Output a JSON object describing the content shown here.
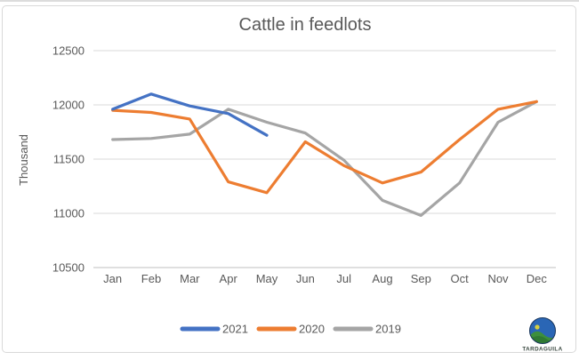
{
  "theme": {
    "series_blue": "#4472C4",
    "series_orange": "#ED7D31",
    "series_gray": "#A5A5A5",
    "gridline": "#D9D9D9",
    "axis_line": "#BFBFBF",
    "text": "#595959",
    "frame_border": "#D9D9D9"
  },
  "chart_data": {
    "type": "line",
    "title": "Cattle in feedlots",
    "xlabel": "",
    "ylabel": "Thousand",
    "categories": [
      "Jan",
      "Feb",
      "Mar",
      "Apr",
      "May",
      "Jun",
      "Jul",
      "Aug",
      "Sep",
      "Oct",
      "Nov",
      "Dec"
    ],
    "series": [
      {
        "name": "2021",
        "color": "#4472C4",
        "values": [
          11960,
          12100,
          11990,
          11920,
          11720,
          null,
          null,
          null,
          null,
          null,
          null,
          null
        ]
      },
      {
        "name": "2020",
        "color": "#ED7D31",
        "values": [
          11950,
          11930,
          11870,
          11290,
          11190,
          11660,
          11440,
          11280,
          11380,
          11680,
          11960,
          12030
        ]
      },
      {
        "name": "2019",
        "color": "#A5A5A5",
        "values": [
          11680,
          11690,
          11730,
          11960,
          11840,
          11740,
          11490,
          11120,
          10980,
          11280,
          11840,
          12030
        ]
      }
    ],
    "ylim": [
      10500,
      12500
    ],
    "ytick_step": 500,
    "yticks": [
      "12500",
      "12000",
      "11500",
      "11000",
      "10500"
    ],
    "grid": true,
    "legend_position": "bottom"
  },
  "logo": {
    "text": "TARDAGUILA"
  }
}
